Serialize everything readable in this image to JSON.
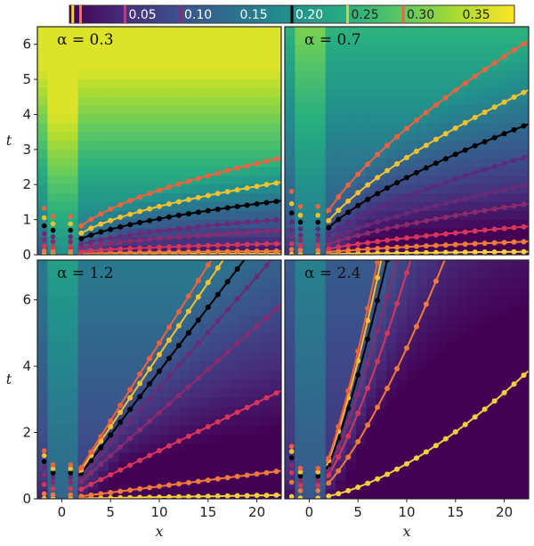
{
  "colorbar": {
    "ticks": [
      {
        "value": 0.05,
        "label": "0.05"
      },
      {
        "value": 0.1,
        "label": "0.10"
      },
      {
        "value": 0.15,
        "label": "0.15"
      },
      {
        "value": 0.2,
        "label": "0.20"
      },
      {
        "value": 0.25,
        "label": "0.25"
      },
      {
        "value": 0.3,
        "label": "0.30"
      },
      {
        "value": 0.35,
        "label": "0.35"
      }
    ],
    "range": [
      0,
      0.4
    ],
    "level_markers": [
      {
        "value": 0.003,
        "color": "#f7d13d"
      },
      {
        "value": 0.01,
        "color": "#f07a3a"
      },
      {
        "value": 0.05,
        "color": "#d9345a"
      },
      {
        "value": 0.1,
        "color": "#8c2a6e"
      },
      {
        "value": 0.2,
        "color": "#000000"
      },
      {
        "value": 0.25,
        "color": "#f2c12e"
      },
      {
        "value": 0.3,
        "color": "#ef6240"
      }
    ]
  },
  "chart_data": [
    {
      "type": "heatmap",
      "label": "α = 0.3",
      "xlabel": "",
      "ylabel": "t",
      "xlim": [
        -2.5,
        22.5
      ],
      "ylim": [
        0,
        6.5
      ],
      "xticks": [],
      "yticks": [
        0,
        1,
        2,
        3,
        4,
        5,
        6
      ],
      "heat_base": 0.14,
      "heat_drift": 0.045,
      "heat_max": 0.38,
      "curves": [
        {
          "color": "#f7d13d",
          "t_at_x20": 0.03,
          "power": 0.5
        },
        {
          "color": "#f07a3a",
          "t_at_x20": 0.1,
          "power": 0.5
        },
        {
          "color": "#d9345a",
          "t_at_x20": 0.3,
          "power": 0.5
        },
        {
          "color": "#8c2a6e",
          "t_at_x20": 0.65,
          "power": 0.5
        },
        {
          "color": "#6b2a78",
          "t_at_x20": 0.95,
          "power": 0.5
        },
        {
          "color": "#000000",
          "t_at_x20": 1.45,
          "power": 0.5
        },
        {
          "color": "#f2c12e",
          "t_at_x20": 1.95,
          "power": 0.5
        },
        {
          "color": "#ef6240",
          "t_at_x20": 2.6,
          "power": 0.5
        }
      ]
    },
    {
      "type": "heatmap",
      "label": "α = 0.7",
      "xlabel": "",
      "ylabel": "",
      "xlim": [
        -2.5,
        22.5
      ],
      "ylim": [
        0,
        6.5
      ],
      "xticks": [],
      "yticks": [],
      "heat_base": 0.09,
      "heat_drift": 0.026,
      "heat_max": 0.34,
      "curves": [
        {
          "color": "#f7d13d",
          "t_at_x20": 0.08,
          "power": 0.65
        },
        {
          "color": "#f07a3a",
          "t_at_x20": 0.35,
          "power": 0.65
        },
        {
          "color": "#d9345a",
          "t_at_x20": 0.75,
          "power": 0.65
        },
        {
          "color": "#8c2a6e",
          "t_at_x20": 1.35,
          "power": 0.65
        },
        {
          "color": "#6b2a78",
          "t_at_x20": 1.85,
          "power": 0.65
        },
        {
          "color": "#5b2a7e",
          "t_at_x20": 2.6,
          "power": 0.65
        },
        {
          "color": "#000000",
          "t_at_x20": 3.45,
          "power": 0.65
        },
        {
          "color": "#f2c12e",
          "t_at_x20": 4.35,
          "power": 0.65
        },
        {
          "color": "#ef6240",
          "t_at_x20": 5.65,
          "power": 0.65
        }
      ]
    },
    {
      "type": "heatmap",
      "label": "α = 1.2",
      "xlabel": "x",
      "ylabel": "t",
      "xlim": [
        -2.5,
        22.5
      ],
      "ylim": [
        0,
        7.2
      ],
      "xticks": [
        0,
        5,
        10,
        15,
        20
      ],
      "yticks": [
        0,
        2,
        4,
        6
      ],
      "heat_base": 0.07,
      "heat_drift": 0.013,
      "heat_max": 0.3,
      "curves": [
        {
          "color": "#f7d13d",
          "t_at_x20": 0.1,
          "power": 1.0
        },
        {
          "color": "#f07a3a",
          "t_at_x20": 0.75,
          "power": 1.0
        },
        {
          "color": "#d9345a",
          "t_at_x20": 2.9,
          "power": 1.0
        },
        {
          "color": "#8c2a6e",
          "t_at_x20": 5.2,
          "power": 1.0
        },
        {
          "color": "#6b2a78",
          "t_at_x20": 6.7,
          "power": 1.0
        },
        {
          "color": "#000000",
          "t_at_x20": 7.7,
          "power": 1.0
        },
        {
          "color": "#f2c12e",
          "t_at_x20": 8.7,
          "power": 1.0
        },
        {
          "color": "#ef6240",
          "t_at_x20": 9.4,
          "power": 1.0
        }
      ]
    },
    {
      "type": "heatmap",
      "label": "α = 2.4",
      "xlabel": "x",
      "ylabel": "",
      "xlim": [
        -2.5,
        22.5
      ],
      "ylim": [
        0,
        7.2
      ],
      "xticks": [
        0,
        5,
        10,
        15,
        20
      ],
      "yticks": [],
      "heat_base": 0.05,
      "heat_drift": 0.009,
      "heat_max": 0.28,
      "curves": [
        {
          "color": "#f7d13d",
          "t_at_x20": 3.2,
          "power": 1.6
        },
        {
          "color": "#f07a3a",
          "t_at_x20": 12.0,
          "power": 1.4
        },
        {
          "color": "#d9345a",
          "t_at_x20": 18.0,
          "power": 1.4
        },
        {
          "color": "#8c2a6e",
          "t_at_x20": 22.0,
          "power": 1.4
        },
        {
          "color": "#000000",
          "t_at_x20": 26.0,
          "power": 1.4
        },
        {
          "color": "#f2c12e",
          "t_at_x20": 29.0,
          "power": 1.4
        },
        {
          "color": "#ef6240",
          "t_at_x20": 31.0,
          "power": 1.4
        }
      ]
    }
  ]
}
